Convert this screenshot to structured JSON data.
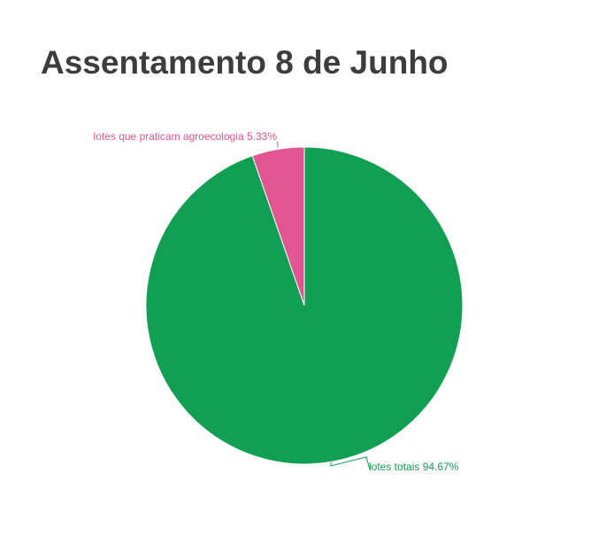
{
  "chart_data": {
    "type": "pie",
    "title": "Assentamento 8 de Junho",
    "slices": [
      {
        "name": "lotes que praticam agroecologia",
        "percent": 5.33,
        "label": "lotes que praticam agroecologia 5.33%",
        "color": "#e05592"
      },
      {
        "name": "lotes totais",
        "percent": 94.67,
        "label": "lotes totais 94.67%",
        "color": "#11a053"
      }
    ],
    "legend": "none",
    "start_angle": "12 o'clock",
    "direction": "counter-clockwise"
  }
}
